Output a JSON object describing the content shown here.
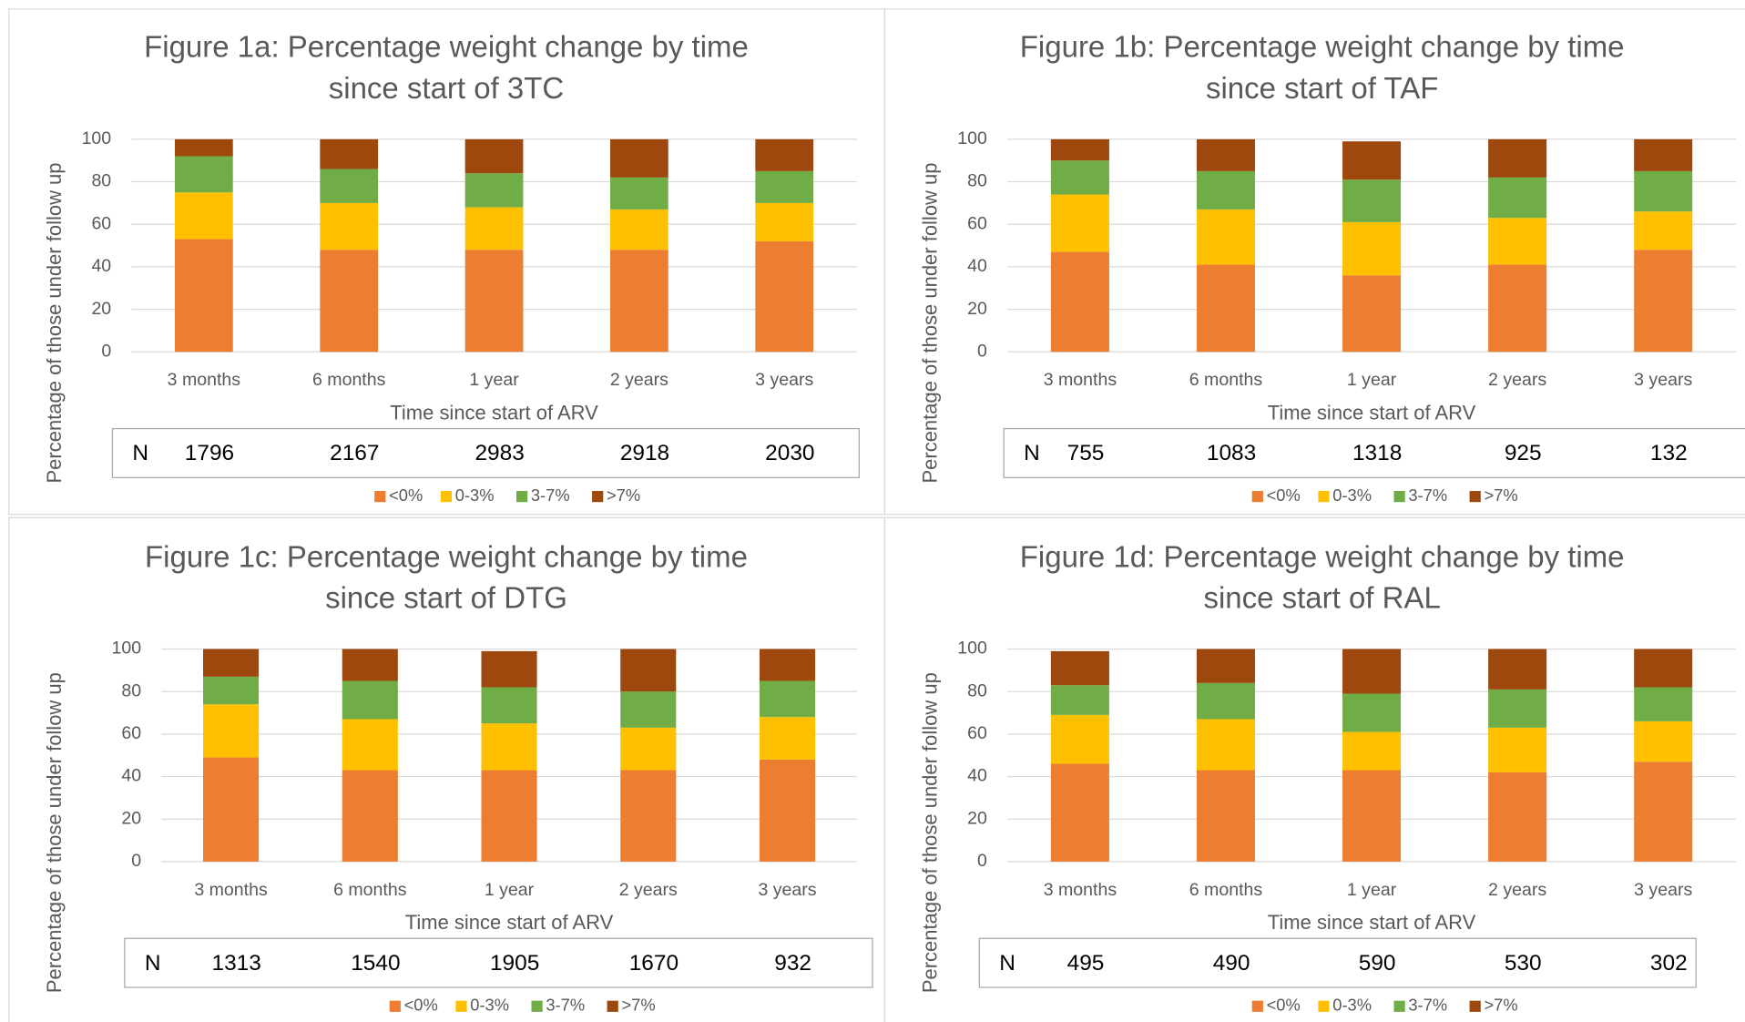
{
  "chart_data": [
    {
      "type": "bar",
      "stacked": true,
      "title": [
        "Figure 1a: Percentage weight change by time",
        "since start of 3TC"
      ],
      "xlabel": "Time since start of ARV",
      "ylabel": "Percentage of those under follow up",
      "categories": [
        "3 months",
        "6 months",
        "1 year",
        "2 years",
        "3 years"
      ],
      "series": [
        {
          "name": "<0%",
          "color": "#ed7d31",
          "values": [
            53,
            48,
            48,
            48,
            52
          ]
        },
        {
          "name": "0-3%",
          "color": "#ffc000",
          "values": [
            22,
            22,
            20,
            19,
            18
          ]
        },
        {
          "name": "3-7%",
          "color": "#70ad47",
          "values": [
            17,
            16,
            16,
            15,
            15
          ]
        },
        {
          "name": ">7%",
          "color": "#9e480e",
          "values": [
            8,
            14,
            16,
            18,
            15
          ]
        }
      ],
      "ylim": [
        0,
        100
      ],
      "yticks": [
        0,
        20,
        40,
        60,
        80,
        100
      ],
      "grid": true,
      "legend": "bottom",
      "n_label": "N",
      "n_values": [
        1796,
        2167,
        2983,
        2918,
        2030
      ]
    },
    {
      "type": "bar",
      "stacked": true,
      "title": [
        "Figure 1b: Percentage weight change by time",
        "since start of TAF"
      ],
      "xlabel": "Time since start of ARV",
      "ylabel": "Percentage of those under follow up",
      "categories": [
        "3 months",
        "6 months",
        "1 year",
        "2 years",
        "3 years"
      ],
      "series": [
        {
          "name": "<0%",
          "color": "#ed7d31",
          "values": [
            47,
            41,
            36,
            41,
            48
          ]
        },
        {
          "name": "0-3%",
          "color": "#ffc000",
          "values": [
            27,
            26,
            25,
            22,
            18
          ]
        },
        {
          "name": "3-7%",
          "color": "#70ad47",
          "values": [
            16,
            18,
            20,
            19,
            19
          ]
        },
        {
          "name": ">7%",
          "color": "#9e480e",
          "values": [
            10,
            15,
            18,
            18,
            15
          ]
        }
      ],
      "ylim": [
        0,
        100
      ],
      "yticks": [
        0,
        20,
        40,
        60,
        80,
        100
      ],
      "grid": true,
      "legend": "bottom",
      "n_label": "N",
      "n_values": [
        755,
        1083,
        1318,
        925,
        132
      ]
    },
    {
      "type": "bar",
      "stacked": true,
      "title": [
        "Figure 1c: Percentage weight change by time",
        "since start of DTG"
      ],
      "xlabel": "Time since start of ARV",
      "ylabel": "Percentage of those under follow up",
      "categories": [
        "3 months",
        "6 months",
        "1 year",
        "2 years",
        "3 years"
      ],
      "series": [
        {
          "name": "<0%",
          "color": "#ed7d31",
          "values": [
            49,
            43,
            43,
            43,
            48
          ]
        },
        {
          "name": "0-3%",
          "color": "#ffc000",
          "values": [
            25,
            24,
            22,
            20,
            20
          ]
        },
        {
          "name": "3-7%",
          "color": "#70ad47",
          "values": [
            13,
            18,
            17,
            17,
            17
          ]
        },
        {
          "name": ">7%",
          "color": "#9e480e",
          "values": [
            13,
            15,
            17,
            20,
            15
          ]
        }
      ],
      "ylim": [
        0,
        100
      ],
      "yticks": [
        0,
        20,
        40,
        60,
        80,
        100
      ],
      "grid": true,
      "legend": "bottom",
      "n_label": "N",
      "n_values": [
        1313,
        1540,
        1905,
        1670,
        932
      ]
    },
    {
      "type": "bar",
      "stacked": true,
      "title": [
        "Figure 1d: Percentage weight change by time",
        "since start of RAL"
      ],
      "xlabel": "Time since start of ARV",
      "ylabel": "Percentage of those under follow up",
      "categories": [
        "3 months",
        "6 months",
        "1 year",
        "2 years",
        "3 years"
      ],
      "series": [
        {
          "name": "<0%",
          "color": "#ed7d31",
          "values": [
            46,
            43,
            43,
            42,
            47
          ]
        },
        {
          "name": "0-3%",
          "color": "#ffc000",
          "values": [
            23,
            24,
            18,
            21,
            19
          ]
        },
        {
          "name": "3-7%",
          "color": "#70ad47",
          "values": [
            14,
            17,
            18,
            18,
            16
          ]
        },
        {
          "name": ">7%",
          "color": "#9e480e",
          "values": [
            16,
            16,
            21,
            19,
            18
          ]
        }
      ],
      "ylim": [
        0,
        100
      ],
      "yticks": [
        0,
        20,
        40,
        60,
        80,
        100
      ],
      "grid": true,
      "legend": "bottom",
      "n_label": "N",
      "n_values": [
        495,
        490,
        590,
        530,
        302
      ]
    }
  ]
}
